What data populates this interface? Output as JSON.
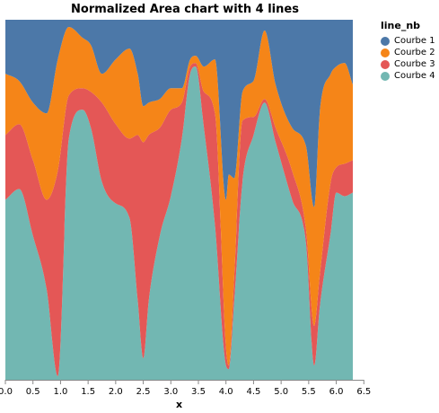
{
  "chart_data": {
    "type": "area",
    "stack": "normalize",
    "title": "Normalized Area chart with 4 lines",
    "xlabel": "x",
    "ylabel": "",
    "xlim": [
      0.0,
      6.3
    ],
    "ylim": [
      0,
      1
    ],
    "x_ticks": [
      "0.0",
      "0.5",
      "1.0",
      "1.5",
      "2.0",
      "2.5",
      "3.0",
      "3.5",
      "4.0",
      "4.5",
      "5.0",
      "5.5",
      "6.0",
      "6.5"
    ],
    "grid": false,
    "legend_title": "line_nb",
    "legend_position": "right",
    "interpolate": "monotone",
    "x": [
      0.0,
      0.25,
      0.5,
      0.75,
      0.95,
      1.15,
      1.4,
      1.55,
      1.75,
      2.0,
      2.25,
      2.4,
      2.5,
      2.6,
      2.8,
      3.0,
      3.2,
      3.35,
      3.45,
      3.6,
      3.8,
      4.0,
      4.05,
      4.15,
      4.3,
      4.5,
      4.7,
      4.9,
      5.2,
      5.45,
      5.6,
      5.7,
      5.9,
      6.0,
      6.15,
      6.3
    ],
    "series": [
      {
        "name": "Courbe 4",
        "color": "#72b7b2",
        "values": [
          0.5,
          0.53,
          0.4,
          0.25,
          0.01,
          0.67,
          0.75,
          0.7,
          0.55,
          0.49,
          0.45,
          0.22,
          0.06,
          0.22,
          0.4,
          0.51,
          0.67,
          0.85,
          0.87,
          0.7,
          0.43,
          0.04,
          0.03,
          0.22,
          0.55,
          0.68,
          0.77,
          0.66,
          0.5,
          0.38,
          0.04,
          0.2,
          0.41,
          0.52,
          0.51,
          0.52
        ]
      },
      {
        "name": "Courbe 3",
        "color": "#e45756",
        "values": [
          0.18,
          0.18,
          0.21,
          0.25,
          0.57,
          0.12,
          0.06,
          0.1,
          0.22,
          0.22,
          0.22,
          0.46,
          0.6,
          0.46,
          0.3,
          0.24,
          0.1,
          0.02,
          0.01,
          0.1,
          0.31,
          0.05,
          0.01,
          0.07,
          0.17,
          0.05,
          0.01,
          0.04,
          0.08,
          0.04,
          0.11,
          0.09,
          0.14,
          0.07,
          0.09,
          0.09
        ]
      },
      {
        "name": "Courbe 2",
        "color": "#f58518",
        "values": [
          0.17,
          0.12,
          0.16,
          0.24,
          0.31,
          0.19,
          0.14,
          0.13,
          0.08,
          0.18,
          0.25,
          0.17,
          0.1,
          0.09,
          0.08,
          0.06,
          0.04,
          0.02,
          0.02,
          0.07,
          0.15,
          0.41,
          0.53,
          0.27,
          0.08,
          0.1,
          0.19,
          0.12,
          0.12,
          0.23,
          0.33,
          0.45,
          0.3,
          0.28,
          0.28,
          0.21
        ]
      },
      {
        "name": "Courbe 1",
        "color": "#4c78a8",
        "values": [
          0.15,
          0.17,
          0.23,
          0.26,
          0.11,
          0.02,
          0.05,
          0.07,
          0.15,
          0.11,
          0.08,
          0.15,
          0.24,
          0.23,
          0.22,
          0.19,
          0.19,
          0.11,
          0.1,
          0.13,
          0.11,
          0.5,
          0.43,
          0.44,
          0.2,
          0.17,
          0.03,
          0.18,
          0.3,
          0.35,
          0.52,
          0.26,
          0.15,
          0.13,
          0.12,
          0.18
        ]
      }
    ]
  }
}
